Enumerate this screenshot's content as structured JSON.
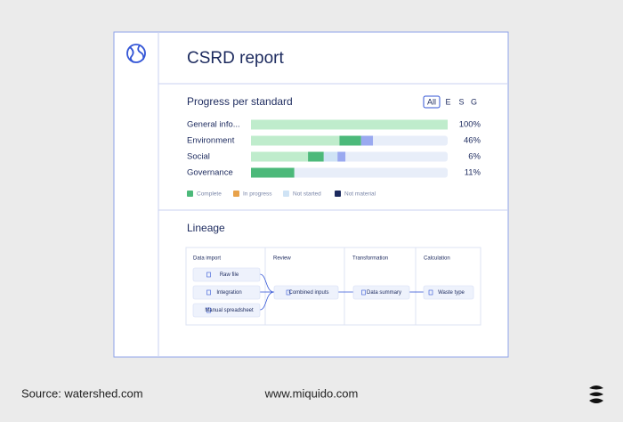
{
  "header": {
    "title": "CSRD report"
  },
  "progress": {
    "title": "Progress per standard",
    "filters": [
      "All",
      "E",
      "S",
      "G"
    ],
    "rows": [
      {
        "name": "General info...",
        "percent": "100%",
        "segments": [
          {
            "color": "#bfeccc",
            "value": 100
          }
        ]
      },
      {
        "name": "Environment",
        "percent": "46%",
        "segments": [
          {
            "color": "#bfeccc",
            "value": 45
          },
          {
            "color": "#4cb97a",
            "value": 11
          },
          {
            "color": "#9aa9f0",
            "value": 6
          }
        ]
      },
      {
        "name": "Social",
        "percent": "6%",
        "segments": [
          {
            "color": "#bfeccc",
            "value": 29
          },
          {
            "color": "#4cb97a",
            "value": 8
          },
          {
            "color": "#cfe3f5",
            "value": 7
          },
          {
            "color": "#9aa9f0",
            "value": 4
          }
        ]
      },
      {
        "name": "Governance",
        "percent": "11%",
        "segments": [
          {
            "color": "#4cb97a",
            "value": 22
          }
        ]
      }
    ],
    "legend": [
      {
        "label": "Complete",
        "color": "#4cb97a"
      },
      {
        "label": "In progress",
        "color": "#e8a24a"
      },
      {
        "label": "Not started",
        "color": "#cfe3f5"
      },
      {
        "label": "Not material",
        "color": "#1c2a5e"
      }
    ]
  },
  "lineage": {
    "title": "Lineage",
    "columns": [
      "Data import",
      "Review",
      "Transformation",
      "Calculation"
    ],
    "nodes": [
      "Raw file",
      "Integration",
      "Manual spreadsheet",
      "Combined inputs",
      "Data summary",
      "Waste type"
    ]
  },
  "footer": {
    "source": "Source: watershed.com",
    "website": "www.miquido.com"
  }
}
